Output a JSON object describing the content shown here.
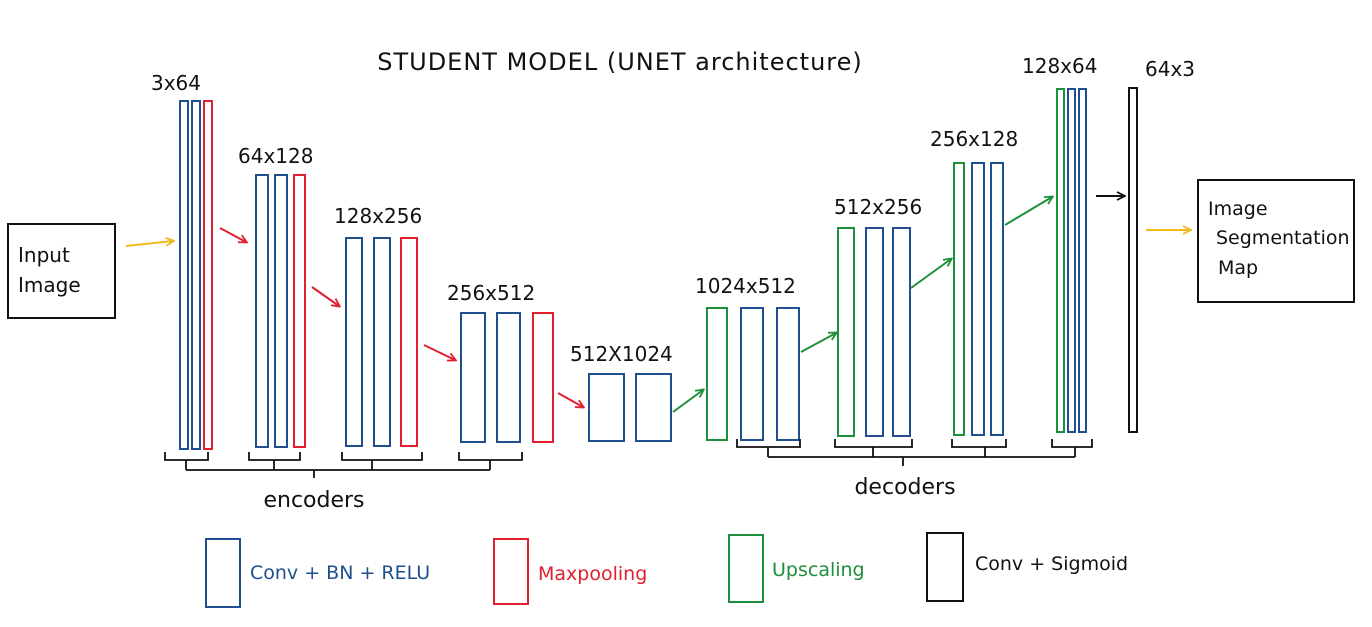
{
  "title": "STUDENT MODEL (UNET architecture)",
  "colors": {
    "conv": "#1f4f8f",
    "maxpool": "#e0202e",
    "upscale": "#1e8f3a",
    "sigmoid": "#111111",
    "input_arrow": "#f2b81d",
    "box_border": "#111111"
  },
  "input_box": {
    "label": "Input\nImage"
  },
  "output_box": {
    "label": "Image\nSegmentation\nMap"
  },
  "stages": [
    {
      "id": "enc1",
      "dims": "3x64"
    },
    {
      "id": "enc2",
      "dims": "64x128"
    },
    {
      "id": "enc3",
      "dims": "128x256"
    },
    {
      "id": "enc4",
      "dims": "256x512"
    },
    {
      "id": "bottleneck",
      "dims": "512X1024"
    },
    {
      "id": "dec1",
      "dims": "1024x512"
    },
    {
      "id": "dec2",
      "dims": "512x256"
    },
    {
      "id": "dec3",
      "dims": "256x128"
    },
    {
      "id": "dec4",
      "dims": "128x64"
    },
    {
      "id": "final",
      "dims": "64x3"
    }
  ],
  "groups": {
    "encoders": "encoders",
    "decoders": "decoders"
  },
  "legend": [
    {
      "label": "Conv + BN + RELU",
      "color": "#1f4f8f"
    },
    {
      "label": "Maxpooling",
      "color": "#e0202e"
    },
    {
      "label": "Upscaling",
      "color": "#1e8f3a"
    },
    {
      "label": "Conv + Sigmoid",
      "color": "#111111"
    }
  ]
}
